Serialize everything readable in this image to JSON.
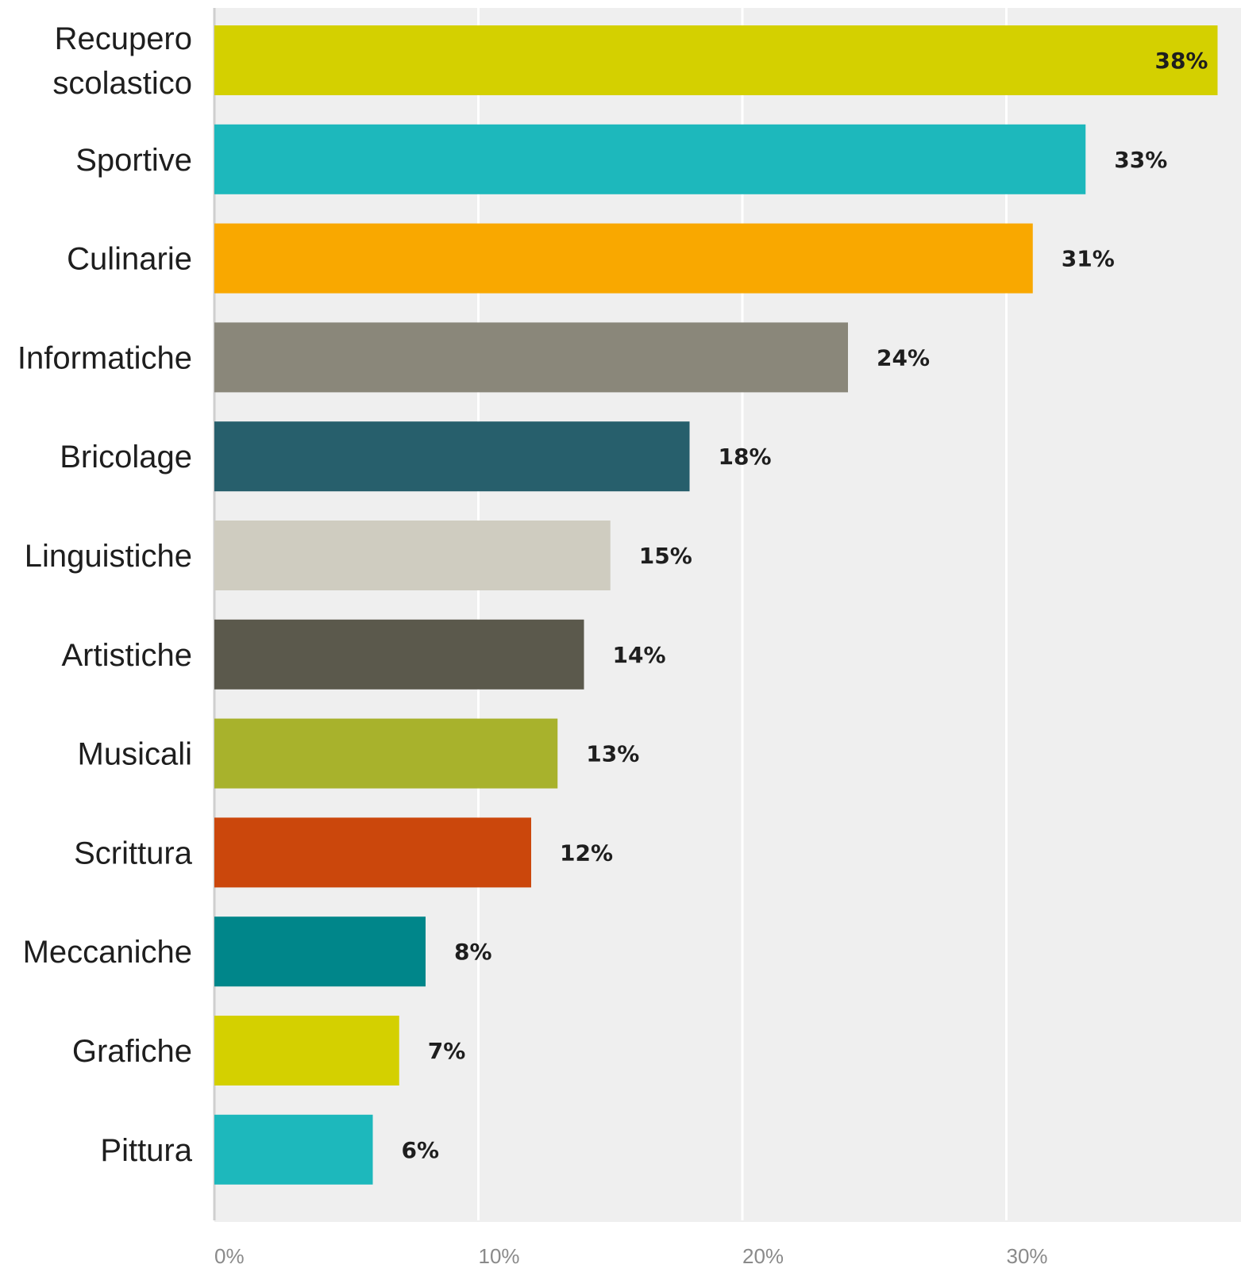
{
  "chart_data": {
    "type": "bar",
    "orientation": "horizontal",
    "title": "",
    "xlabel": "",
    "ylabel": "",
    "xlim": [
      0,
      38
    ],
    "grid": true,
    "legend": "none",
    "background_color": "#efefef",
    "categories": [
      "Recupero scolastico",
      "Sportive",
      "Culinarie",
      "Informatiche",
      "Bricolage",
      "Linguistiche",
      "Artistiche",
      "Musicali",
      "Scrittura",
      "Meccaniche",
      "Grafiche",
      "Pittura"
    ],
    "category_label_lines": [
      [
        "Recupero",
        "scolastico"
      ],
      [
        "Sportive"
      ],
      [
        "Culinarie"
      ],
      [
        "Informatiche"
      ],
      [
        "Bricolage"
      ],
      [
        "Linguistiche"
      ],
      [
        "Artistiche"
      ],
      [
        "Musicali"
      ],
      [
        "Scrittura"
      ],
      [
        "Meccaniche"
      ],
      [
        "Grafiche"
      ],
      [
        "Pittura"
      ]
    ],
    "values": [
      38,
      33,
      31,
      24,
      18,
      15,
      14,
      13,
      12,
      8,
      7,
      6
    ],
    "value_labels": [
      "38%",
      "33%",
      "31%",
      "24%",
      "18%",
      "15%",
      "14%",
      "13%",
      "12%",
      "8%",
      "7%",
      "6%"
    ],
    "colors": [
      "#d4d000",
      "#1db8bc",
      "#f9a800",
      "#8a877a",
      "#275f6c",
      "#cfccc0",
      "#5b594c",
      "#a8b22c",
      "#cb470c",
      "#00868a",
      "#d4d000",
      "#1db8bc"
    ],
    "x_ticks": [
      0,
      10,
      20,
      30
    ],
    "x_tick_labels": [
      "0%",
      "10%",
      "20%",
      "30%"
    ]
  }
}
